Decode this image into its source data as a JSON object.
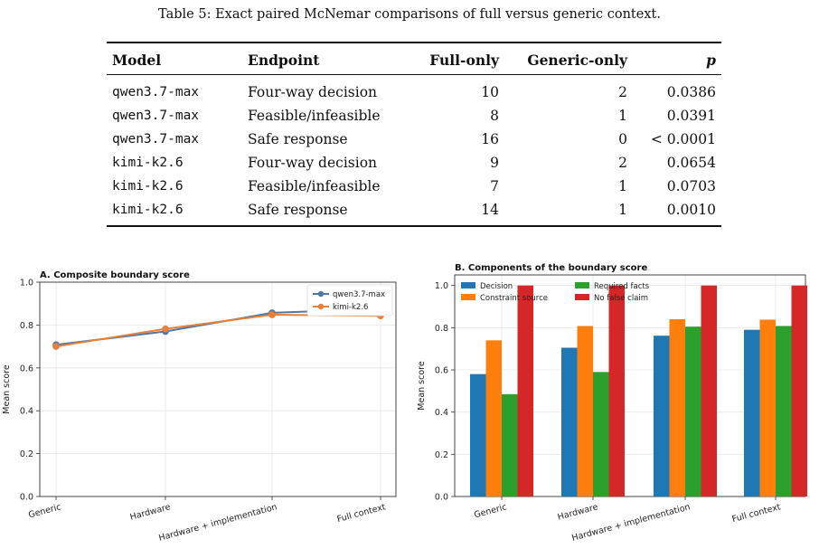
{
  "table": {
    "caption": "Table 5: Exact paired McNemar comparisons of full versus generic context.",
    "headers": [
      "Model",
      "Endpoint",
      "Full-only",
      "Generic-only",
      "p"
    ],
    "rows": [
      {
        "model": "qwen3.7-max",
        "endpoint": "Four-way decision",
        "full_only": "10",
        "generic_only": "2",
        "p": "0.0386"
      },
      {
        "model": "qwen3.7-max",
        "endpoint": "Feasible/infeasible",
        "full_only": "8",
        "generic_only": "1",
        "p": "0.0391"
      },
      {
        "model": "qwen3.7-max",
        "endpoint": "Safe response",
        "full_only": "16",
        "generic_only": "0",
        "p": "< 0.0001"
      },
      {
        "model": "kimi-k2.6",
        "endpoint": "Four-way decision",
        "full_only": "9",
        "generic_only": "2",
        "p": "0.0654"
      },
      {
        "model": "kimi-k2.6",
        "endpoint": "Feasible/infeasible",
        "full_only": "7",
        "generic_only": "1",
        "p": "0.0703"
      },
      {
        "model": "kimi-k2.6",
        "endpoint": "Safe response",
        "full_only": "14",
        "generic_only": "1",
        "p": "0.0010"
      }
    ]
  },
  "chart_data": [
    {
      "type": "line",
      "title": "A. Composite boundary score",
      "xlabel": "",
      "ylabel": "Mean score",
      "ylim": [
        0,
        1.0
      ],
      "yticks": [
        "0.0",
        "0.2",
        "0.4",
        "0.6",
        "0.8",
        "1.0"
      ],
      "categories": [
        "Generic",
        "Hardware",
        "Hardware + implementation",
        "Full context"
      ],
      "series": [
        {
          "name": "qwen3.7-max",
          "color": "#4e79a7",
          "values": [
            0.708,
            0.77,
            0.857,
            0.875
          ]
        },
        {
          "name": "kimi-k2.6",
          "color": "#e8803a",
          "values": [
            0.7,
            0.782,
            0.848,
            0.843
          ]
        }
      ],
      "legend": "top-right",
      "grid": true
    },
    {
      "type": "bar",
      "title": "B. Components of the boundary score",
      "xlabel": "",
      "ylabel": "Mean score",
      "ylim": [
        0,
        1.05
      ],
      "yticks": [
        "0.0",
        "0.2",
        "0.4",
        "0.6",
        "0.8",
        "1.0"
      ],
      "categories": [
        "Generic",
        "Hardware",
        "Hardware + implementation",
        "Full context"
      ],
      "series": [
        {
          "name": "Decision",
          "color": "#1f77b4",
          "values": [
            0.58,
            0.705,
            0.762,
            0.79
          ]
        },
        {
          "name": "Constraint source",
          "color": "#ff7f0e",
          "values": [
            0.74,
            0.808,
            0.84,
            0.838
          ]
        },
        {
          "name": "Required facts",
          "color": "#2ca02c",
          "values": [
            0.485,
            0.59,
            0.805,
            0.808
          ]
        },
        {
          "name": "No false claim",
          "color": "#d62728",
          "values": [
            1.0,
            1.0,
            1.0,
            1.0
          ]
        }
      ],
      "legend": "top-left",
      "grid": true
    }
  ]
}
